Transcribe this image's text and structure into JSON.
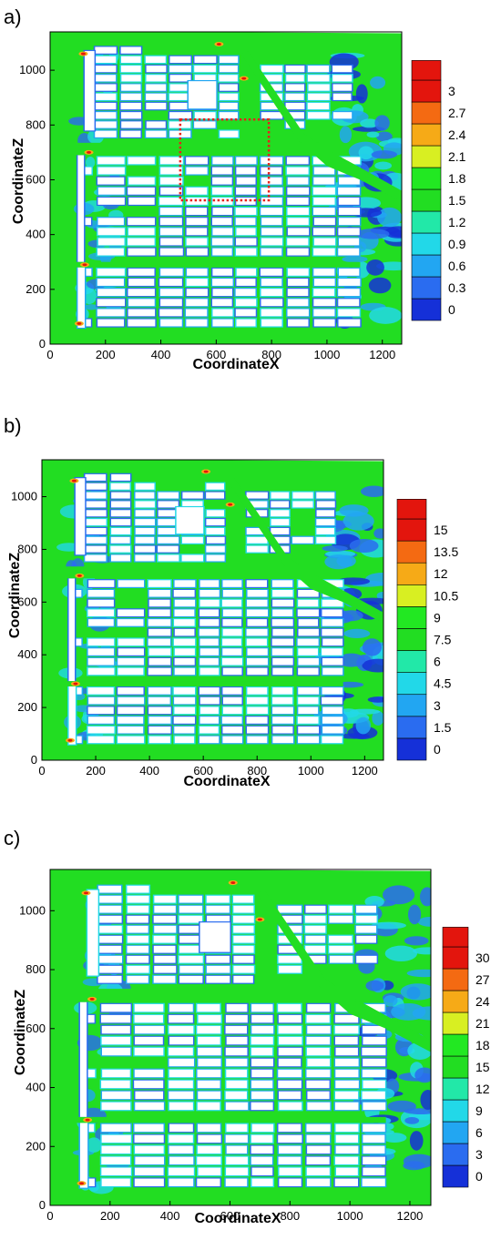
{
  "colors": {
    "background_field": "#22dd22",
    "building": "#ffffff",
    "highlight_box": "#e8211b",
    "levels": [
      "#1530d8",
      "#2a6cf0",
      "#22a6f2",
      "#22d8e8",
      "#22e8a8",
      "#22d86a",
      "#22dd22",
      "#22e822",
      "#d8ef22",
      "#f6aa17",
      "#f46a12",
      "#e3150d"
    ]
  },
  "chart_data": [
    {
      "type": "heatmap",
      "panel_label": "a)",
      "xlabel": "CoordinateX",
      "ylabel": "CoordinateZ",
      "xlim": [
        0,
        1270
      ],
      "ylim": [
        0,
        1140
      ],
      "xticks": [
        0,
        200,
        400,
        600,
        800,
        1000,
        1200
      ],
      "yticks": [
        0,
        200,
        400,
        600,
        800,
        1000
      ],
      "legend": {
        "placement": "right",
        "levels": [
          0,
          0.3,
          0.6,
          0.9,
          1.2,
          1.5,
          1.8,
          2.1,
          2.4,
          2.7,
          3
        ]
      },
      "highlight_box": {
        "x": [
          470,
          790
        ],
        "z": [
          525,
          820
        ]
      }
    },
    {
      "type": "heatmap",
      "panel_label": "b)",
      "xlabel": "CoordinateX",
      "ylabel": "CoordinateZ",
      "xlim": [
        0,
        1270
      ],
      "ylim": [
        0,
        1140
      ],
      "xticks": [
        0,
        200,
        400,
        600,
        800,
        1000,
        1200
      ],
      "yticks": [
        0,
        200,
        400,
        600,
        800,
        1000
      ],
      "legend": {
        "placement": "right",
        "levels": [
          0,
          1.5,
          3,
          4.5,
          6,
          7.5,
          9,
          10.5,
          12,
          13.5,
          15
        ]
      }
    },
    {
      "type": "heatmap",
      "panel_label": "c)",
      "xlabel": "CoordinateX",
      "ylabel": "CoordinateZ",
      "xlim": [
        0,
        1270
      ],
      "ylim": [
        0,
        1140
      ],
      "xticks": [
        0,
        200,
        400,
        600,
        800,
        1000,
        1200
      ],
      "yticks": [
        0,
        200,
        400,
        600,
        800,
        1000
      ],
      "legend": {
        "placement": "right",
        "levels": [
          0,
          3,
          6,
          9,
          12,
          15,
          18,
          21,
          24,
          27,
          30
        ]
      }
    }
  ]
}
